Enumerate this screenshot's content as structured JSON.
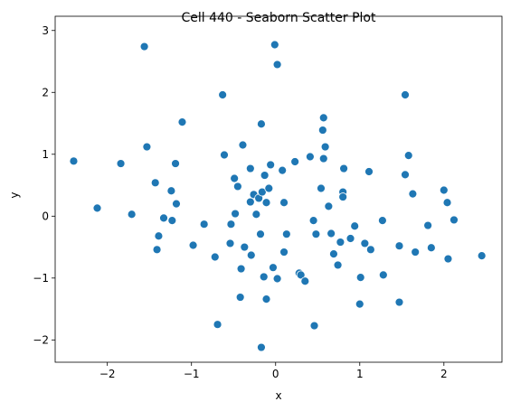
{
  "chart_data": {
    "type": "scatter",
    "title": "Cell 440 - Seaborn Scatter Plot",
    "x_label": "x",
    "y_label": "y",
    "color": "#1f77b4",
    "grid": false,
    "x": [
      -2.4,
      -2.12,
      -1.84,
      -1.71,
      -1.56,
      -1.53,
      -1.43,
      -1.39,
      -1.41,
      -1.33,
      -1.24,
      -1.23,
      -1.19,
      -1.18,
      -1.11,
      -0.98,
      -0.85,
      -0.72,
      -0.69,
      -0.63,
      -0.61,
      -0.54,
      -0.53,
      -0.49,
      -0.48,
      -0.45,
      -0.42,
      -0.41,
      -0.39,
      -0.37,
      -0.3,
      -0.3,
      -0.29,
      -0.26,
      -0.23,
      -0.2,
      -0.18,
      -0.17,
      -0.17,
      -0.16,
      -0.14,
      -0.13,
      -0.11,
      -0.11,
      -0.06,
      -0.08,
      -0.03,
      -0.01,
      0.02,
      0.02,
      0.08,
      0.1,
      0.1,
      0.13,
      0.23,
      0.28,
      0.3,
      0.35,
      0.41,
      0.45,
      0.46,
      0.48,
      0.54,
      0.56,
      0.57,
      0.57,
      0.59,
      0.63,
      0.66,
      0.69,
      0.74,
      0.77,
      0.81,
      0.8,
      0.8,
      0.89,
      0.94,
      1.0,
      1.01,
      1.06,
      1.11,
      1.13,
      1.27,
      1.28,
      1.47,
      1.47,
      1.54,
      1.54,
      1.58,
      1.63,
      1.66,
      1.81,
      1.85,
      2.0,
      2.04,
      2.05,
      2.12,
      2.45
    ],
    "y": [
      0.89,
      0.13,
      0.85,
      0.03,
      2.74,
      1.12,
      0.54,
      -0.32,
      -0.54,
      -0.03,
      0.41,
      -0.07,
      0.85,
      0.2,
      1.52,
      -0.47,
      -0.13,
      -0.66,
      -1.75,
      1.96,
      0.99,
      -0.44,
      -0.13,
      0.61,
      0.04,
      0.48,
      -1.31,
      -0.85,
      1.15,
      -0.5,
      0.77,
      0.23,
      -0.63,
      0.35,
      0.03,
      0.29,
      -0.29,
      1.49,
      -2.12,
      0.39,
      -0.98,
      0.66,
      0.22,
      -1.34,
      0.83,
      0.45,
      -0.83,
      2.77,
      2.45,
      -1.01,
      0.74,
      0.22,
      -0.58,
      -0.29,
      0.88,
      -0.92,
      -0.95,
      -1.05,
      0.96,
      -0.07,
      -1.77,
      -0.29,
      0.45,
      1.39,
      1.59,
      0.93,
      1.12,
      0.16,
      -0.28,
      -0.61,
      -0.79,
      -0.42,
      0.77,
      0.39,
      0.31,
      -0.36,
      -0.16,
      -1.42,
      -0.99,
      -0.44,
      0.72,
      -0.54,
      -0.07,
      -0.95,
      -0.48,
      -1.39,
      0.67,
      1.96,
      0.98,
      0.36,
      -0.58,
      -0.15,
      -0.51,
      0.42,
      0.22,
      -0.69,
      -0.06,
      -0.64
    ],
    "xlim": [
      -2.62,
      2.69
    ],
    "ylim": [
      -2.36,
      3.23
    ],
    "xticks": [
      {
        "value": -2,
        "label": "−2"
      },
      {
        "value": -1,
        "label": "−1"
      },
      0,
      1,
      2
    ],
    "yticks": [
      {
        "value": -2,
        "label": "−2"
      },
      {
        "value": -1,
        "label": "−1"
      },
      0,
      1,
      2,
      3
    ]
  }
}
